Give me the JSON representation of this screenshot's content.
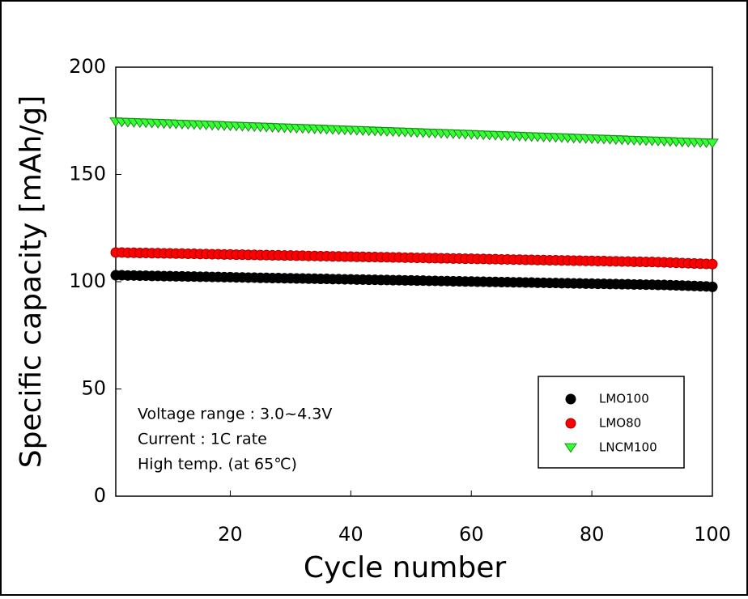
{
  "chart_data": {
    "type": "scatter",
    "y_label": "Specific capacity [mAh/g]",
    "x_label": "Cycle number",
    "xlim": [
      1,
      100
    ],
    "xticks": [
      20,
      40,
      60,
      80,
      100
    ],
    "ylim": [
      0,
      200
    ],
    "yticks": [
      0,
      50,
      100,
      150,
      200
    ],
    "legend": "lower right",
    "annotations": [
      "Voltage range : 3.0~4.3V",
      "Current : 1C rate",
      "High temp. (at 65℃)"
    ],
    "x": [
      1,
      2,
      3,
      4,
      5,
      6,
      7,
      8,
      9,
      10,
      11,
      12,
      13,
      14,
      15,
      16,
      17,
      18,
      19,
      20,
      21,
      22,
      23,
      24,
      25,
      26,
      27,
      28,
      29,
      30,
      31,
      32,
      33,
      34,
      35,
      36,
      37,
      38,
      39,
      40,
      41,
      42,
      43,
      44,
      45,
      46,
      47,
      48,
      49,
      50,
      51,
      52,
      53,
      54,
      55,
      56,
      57,
      58,
      59,
      60,
      61,
      62,
      63,
      64,
      65,
      66,
      67,
      68,
      69,
      70,
      71,
      72,
      73,
      74,
      75,
      76,
      77,
      78,
      79,
      80,
      81,
      82,
      83,
      84,
      85,
      86,
      87,
      88,
      89,
      90,
      91,
      92,
      93,
      94,
      95,
      96,
      97,
      98,
      99,
      100
    ],
    "series": [
      {
        "name": "LMO100",
        "color": "#000000",
        "marker": "circle",
        "values": [
          103.0,
          103.0,
          102.9,
          102.9,
          102.8,
          102.8,
          102.7,
          102.7,
          102.6,
          102.6,
          102.5,
          102.5,
          102.4,
          102.4,
          102.3,
          102.3,
          102.2,
          102.2,
          102.1,
          102.1,
          102.0,
          102.0,
          101.9,
          101.9,
          101.8,
          101.8,
          101.7,
          101.7,
          101.6,
          101.6,
          101.5,
          101.5,
          101.4,
          101.4,
          101.3,
          101.3,
          101.2,
          101.2,
          101.1,
          101.1,
          101.0,
          101.0,
          100.9,
          100.9,
          100.8,
          100.8,
          100.7,
          100.7,
          100.6,
          100.6,
          100.5,
          100.5,
          100.4,
          100.4,
          100.3,
          100.3,
          100.2,
          100.2,
          100.1,
          100.1,
          100.0,
          100.0,
          99.9,
          99.9,
          99.8,
          99.8,
          99.7,
          99.7,
          99.6,
          99.6,
          99.5,
          99.5,
          99.4,
          99.4,
          99.3,
          99.3,
          99.2,
          99.2,
          99.1,
          99.1,
          99.0,
          99.0,
          98.9,
          98.9,
          98.8,
          98.8,
          98.7,
          98.7,
          98.6,
          98.6,
          98.5,
          98.5,
          98.4,
          98.3,
          98.2,
          98.1,
          98.0,
          97.9,
          97.8,
          97.6
        ]
      },
      {
        "name": "LMO80",
        "color": "#ff0000",
        "marker": "circle",
        "values": [
          113.6,
          113.6,
          113.5,
          113.5,
          113.4,
          113.4,
          113.3,
          113.3,
          113.2,
          113.2,
          113.1,
          113.1,
          113.0,
          113.0,
          112.9,
          112.9,
          112.8,
          112.8,
          112.7,
          112.7,
          112.6,
          112.6,
          112.5,
          112.5,
          112.4,
          112.4,
          112.3,
          112.3,
          112.2,
          112.2,
          112.1,
          112.1,
          112.0,
          112.0,
          111.9,
          111.9,
          111.8,
          111.8,
          111.7,
          111.7,
          111.6,
          111.6,
          111.5,
          111.5,
          111.4,
          111.4,
          111.3,
          111.3,
          111.2,
          111.2,
          111.1,
          111.1,
          111.0,
          111.0,
          110.9,
          110.9,
          110.8,
          110.8,
          110.7,
          110.7,
          110.6,
          110.6,
          110.5,
          110.5,
          110.4,
          110.4,
          110.3,
          110.3,
          110.2,
          110.2,
          110.1,
          110.1,
          110.0,
          110.0,
          109.9,
          109.9,
          109.8,
          109.8,
          109.7,
          109.7,
          109.6,
          109.6,
          109.5,
          109.5,
          109.4,
          109.4,
          109.3,
          109.3,
          109.2,
          109.2,
          109.1,
          109.0,
          108.9,
          108.8,
          108.7,
          108.6,
          108.5,
          108.4,
          108.3,
          108.2
        ]
      },
      {
        "name": "LNCM100",
        "color": "#33ff33",
        "marker": "triangle-down",
        "values": [
          174.5,
          174.4,
          174.3,
          174.2,
          174.1,
          174.0,
          173.9,
          173.8,
          173.7,
          173.6,
          173.5,
          173.4,
          173.3,
          173.2,
          173.1,
          173.0,
          172.9,
          172.8,
          172.7,
          172.6,
          172.5,
          172.4,
          172.3,
          172.2,
          172.1,
          172.0,
          171.9,
          171.8,
          171.7,
          171.6,
          171.5,
          171.4,
          171.3,
          171.2,
          171.1,
          171.0,
          170.9,
          170.8,
          170.7,
          170.6,
          170.5,
          170.4,
          170.3,
          170.2,
          170.1,
          170.0,
          169.9,
          169.8,
          169.7,
          169.6,
          169.5,
          169.4,
          169.3,
          169.2,
          169.1,
          169.0,
          168.9,
          168.8,
          168.7,
          168.6,
          168.5,
          168.4,
          168.3,
          168.2,
          168.1,
          168.0,
          167.9,
          167.8,
          167.7,
          167.6,
          167.5,
          167.4,
          167.3,
          167.2,
          167.1,
          167.0,
          166.9,
          166.8,
          166.7,
          166.6,
          166.5,
          166.4,
          166.3,
          166.2,
          166.1,
          166.0,
          165.9,
          165.8,
          165.7,
          165.6,
          165.5,
          165.4,
          165.3,
          165.2,
          165.1,
          165.0,
          164.9,
          164.8,
          164.7,
          164.6
        ]
      }
    ]
  }
}
